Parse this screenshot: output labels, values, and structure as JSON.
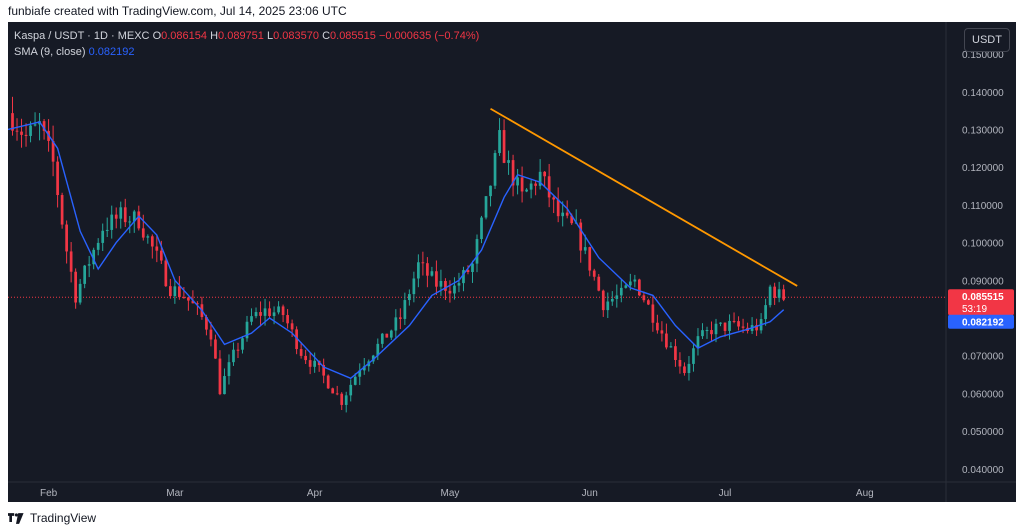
{
  "header": {
    "credit": "funbiafe created with TradingView.com, Jul 14, 2025 23:06 UTC"
  },
  "legend": {
    "symbol": "Kaspa / USDT · 1D · MEXC",
    "o_label": "O",
    "o_value": "0.086154",
    "h_label": "H",
    "h_value": "0.089751",
    "l_label": "L",
    "l_value": "0.083570",
    "c_label": "C",
    "c_value": "0.085515",
    "change": "−0.000635 (−0.74%)",
    "sma_label": "SMA (9, close)",
    "sma_value": "0.082192"
  },
  "currency_button": "USDT",
  "footer": {
    "brand": "TradingView"
  },
  "colors": {
    "background": "#161a25",
    "up": "#26a69a",
    "down": "#f23645",
    "sma": "#2962ff",
    "trendline": "#ff9800",
    "text": "#b2b5be"
  },
  "chart_data": {
    "type": "candlestick",
    "title": "Kaspa / USDT · 1D · MEXC",
    "yticks": [
      "0.150000",
      "0.140000",
      "0.130000",
      "0.120000",
      "0.110000",
      "0.100000",
      "0.090000",
      "0.080000",
      "0.070000",
      "0.060000",
      "0.050000",
      "0.040000"
    ],
    "ylim": [
      0.0365,
      0.1585
    ],
    "xticks": [
      {
        "label": "Feb",
        "date": "2025-02-01"
      },
      {
        "label": "Mar",
        "date": "2025-03-01"
      },
      {
        "label": "Apr",
        "date": "2025-04-01"
      },
      {
        "label": "May",
        "date": "2025-05-01"
      },
      {
        "label": "Jun",
        "date": "2025-06-01"
      },
      {
        "label": "Jul",
        "date": "2025-07-01"
      },
      {
        "label": "Aug",
        "date": "2025-08-01"
      }
    ],
    "xlim": [
      "2025-01-23",
      "2025-08-19"
    ],
    "price_labels": {
      "last": "0.085515",
      "countdown": "53:19",
      "sma": "0.082192"
    },
    "candle_close_anchors": [
      {
        "date": "2025-01-24",
        "close": 0.133
      },
      {
        "date": "2025-01-27",
        "close": 0.128
      },
      {
        "date": "2025-01-30",
        "close": 0.131
      },
      {
        "date": "2025-02-02",
        "close": 0.121
      },
      {
        "date": "2025-02-05",
        "close": 0.098
      },
      {
        "date": "2025-02-07",
        "close": 0.086
      },
      {
        "date": "2025-02-10",
        "close": 0.095
      },
      {
        "date": "2025-02-13",
        "close": 0.104
      },
      {
        "date": "2025-02-17",
        "close": 0.107
      },
      {
        "date": "2025-02-21",
        "close": 0.106
      },
      {
        "date": "2025-02-25",
        "close": 0.096
      },
      {
        "date": "2025-02-28",
        "close": 0.088
      },
      {
        "date": "2025-03-03",
        "close": 0.086
      },
      {
        "date": "2025-03-06",
        "close": 0.082
      },
      {
        "date": "2025-03-09",
        "close": 0.076
      },
      {
        "date": "2025-03-11",
        "close": 0.061
      },
      {
        "date": "2025-03-14",
        "close": 0.07
      },
      {
        "date": "2025-03-18",
        "close": 0.08
      },
      {
        "date": "2025-03-21",
        "close": 0.082
      },
      {
        "date": "2025-03-25",
        "close": 0.081
      },
      {
        "date": "2025-03-29",
        "close": 0.071
      },
      {
        "date": "2025-04-02",
        "close": 0.066
      },
      {
        "date": "2025-04-07",
        "close": 0.058
      },
      {
        "date": "2025-04-11",
        "close": 0.067
      },
      {
        "date": "2025-04-16",
        "close": 0.074
      },
      {
        "date": "2025-04-20",
        "close": 0.08
      },
      {
        "date": "2025-04-24",
        "close": 0.094
      },
      {
        "date": "2025-04-28",
        "close": 0.089
      },
      {
        "date": "2025-05-02",
        "close": 0.088
      },
      {
        "date": "2025-05-06",
        "close": 0.094
      },
      {
        "date": "2025-05-09",
        "close": 0.11
      },
      {
        "date": "2025-05-12",
        "close": 0.127
      },
      {
        "date": "2025-05-14",
        "close": 0.12
      },
      {
        "date": "2025-05-17",
        "close": 0.112
      },
      {
        "date": "2025-05-21",
        "close": 0.118
      },
      {
        "date": "2025-05-25",
        "close": 0.107
      },
      {
        "date": "2025-05-29",
        "close": 0.103
      },
      {
        "date": "2025-06-01",
        "close": 0.094
      },
      {
        "date": "2025-06-04",
        "close": 0.084
      },
      {
        "date": "2025-06-08",
        "close": 0.086
      },
      {
        "date": "2025-06-11",
        "close": 0.09
      },
      {
        "date": "2025-06-14",
        "close": 0.083
      },
      {
        "date": "2025-06-18",
        "close": 0.074
      },
      {
        "date": "2025-06-22",
        "close": 0.066
      },
      {
        "date": "2025-06-25",
        "close": 0.074
      },
      {
        "date": "2025-06-28",
        "close": 0.077
      },
      {
        "date": "2025-07-02",
        "close": 0.078
      },
      {
        "date": "2025-07-06",
        "close": 0.077
      },
      {
        "date": "2025-07-09",
        "close": 0.078
      },
      {
        "date": "2025-07-11",
        "close": 0.088
      },
      {
        "date": "2025-07-13",
        "close": 0.086
      },
      {
        "date": "2025-07-14",
        "close": 0.0855
      }
    ],
    "series": [
      {
        "name": "SMA (9, close)",
        "points": [
          {
            "date": "2025-01-23",
            "y": 0.13
          },
          {
            "date": "2025-01-30",
            "y": 0.132
          },
          {
            "date": "2025-02-03",
            "y": 0.125
          },
          {
            "date": "2025-02-08",
            "y": 0.103
          },
          {
            "date": "2025-02-12",
            "y": 0.093
          },
          {
            "date": "2025-02-16",
            "y": 0.1
          },
          {
            "date": "2025-02-21",
            "y": 0.107
          },
          {
            "date": "2025-02-25",
            "y": 0.102
          },
          {
            "date": "2025-03-01",
            "y": 0.09
          },
          {
            "date": "2025-03-07",
            "y": 0.082
          },
          {
            "date": "2025-03-12",
            "y": 0.073
          },
          {
            "date": "2025-03-18",
            "y": 0.076
          },
          {
            "date": "2025-03-22",
            "y": 0.08
          },
          {
            "date": "2025-03-27",
            "y": 0.076
          },
          {
            "date": "2025-04-03",
            "y": 0.067
          },
          {
            "date": "2025-04-09",
            "y": 0.064
          },
          {
            "date": "2025-04-14",
            "y": 0.069
          },
          {
            "date": "2025-04-22",
            "y": 0.078
          },
          {
            "date": "2025-04-27",
            "y": 0.086
          },
          {
            "date": "2025-05-03",
            "y": 0.09
          },
          {
            "date": "2025-05-08",
            "y": 0.098
          },
          {
            "date": "2025-05-13",
            "y": 0.112
          },
          {
            "date": "2025-05-16",
            "y": 0.118
          },
          {
            "date": "2025-05-21",
            "y": 0.116
          },
          {
            "date": "2025-05-27",
            "y": 0.109
          },
          {
            "date": "2025-06-03",
            "y": 0.096
          },
          {
            "date": "2025-06-10",
            "y": 0.088
          },
          {
            "date": "2025-06-15",
            "y": 0.086
          },
          {
            "date": "2025-06-20",
            "y": 0.078
          },
          {
            "date": "2025-06-25",
            "y": 0.072
          },
          {
            "date": "2025-06-30",
            "y": 0.075
          },
          {
            "date": "2025-07-06",
            "y": 0.077
          },
          {
            "date": "2025-07-11",
            "y": 0.079
          },
          {
            "date": "2025-07-14",
            "y": 0.082192
          }
        ]
      },
      {
        "name": "Trendline",
        "points": [
          {
            "date": "2025-05-10",
            "y": 0.1355
          },
          {
            "date": "2025-07-17",
            "y": 0.0885
          }
        ]
      }
    ],
    "grid": false,
    "legend": "top-left"
  }
}
